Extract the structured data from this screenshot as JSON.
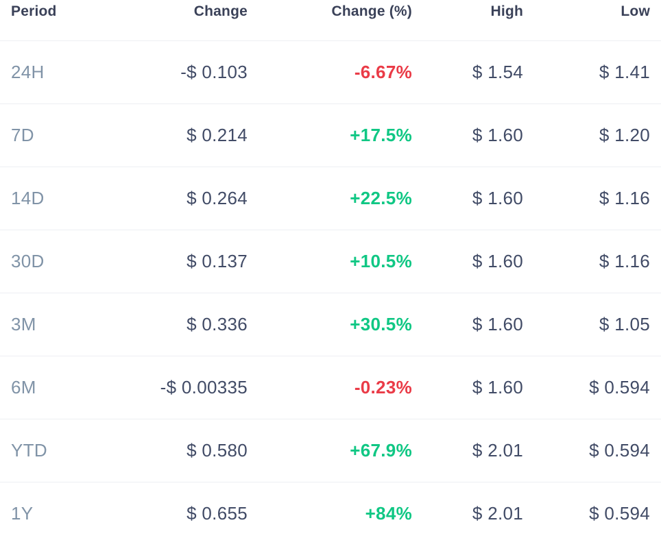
{
  "colors": {
    "header_text": "#3a4158",
    "value_text": "#414b66",
    "period_text": "#8093a7",
    "positive": "#10c784",
    "negative": "#ea3b47",
    "separator": "#edeff3",
    "background": "#ffffff"
  },
  "table": {
    "columns": [
      {
        "id": "period",
        "label": "Period",
        "align": "left"
      },
      {
        "id": "change",
        "label": "Change",
        "align": "right"
      },
      {
        "id": "change_pct",
        "label": "Change (%)",
        "align": "right"
      },
      {
        "id": "high",
        "label": "High",
        "align": "right"
      },
      {
        "id": "low",
        "label": "Low",
        "align": "right"
      }
    ],
    "rows": [
      {
        "period": "24H",
        "change": "-$ 0.103",
        "change_pct": "-6.67%",
        "direction": "down",
        "high": "$ 1.54",
        "low": "$ 1.41"
      },
      {
        "period": "7D",
        "change": "$ 0.214",
        "change_pct": "+17.5%",
        "direction": "up",
        "high": "$ 1.60",
        "low": "$ 1.20"
      },
      {
        "period": "14D",
        "change": "$ 0.264",
        "change_pct": "+22.5%",
        "direction": "up",
        "high": "$ 1.60",
        "low": "$ 1.16"
      },
      {
        "period": "30D",
        "change": "$ 0.137",
        "change_pct": "+10.5%",
        "direction": "up",
        "high": "$ 1.60",
        "low": "$ 1.16"
      },
      {
        "period": "3M",
        "change": "$ 0.336",
        "change_pct": "+30.5%",
        "direction": "up",
        "high": "$ 1.60",
        "low": "$ 1.05"
      },
      {
        "period": "6M",
        "change": "-$ 0.00335",
        "change_pct": "-0.23%",
        "direction": "down",
        "high": "$ 1.60",
        "low": "$ 0.594"
      },
      {
        "period": "YTD",
        "change": "$ 0.580",
        "change_pct": "+67.9%",
        "direction": "up",
        "high": "$ 2.01",
        "low": "$ 0.594"
      },
      {
        "period": "1Y",
        "change": "$ 0.655",
        "change_pct": "+84%",
        "direction": "up",
        "high": "$ 2.01",
        "low": "$ 0.594"
      }
    ]
  },
  "chart_data": {
    "type": "table",
    "title": "Price change statistics by period",
    "columns": [
      "Period",
      "Change",
      "Change (%)",
      "High",
      "Low"
    ],
    "rows": [
      [
        "24H",
        -0.103,
        -6.67,
        1.54,
        1.41
      ],
      [
        "7D",
        0.214,
        17.5,
        1.6,
        1.2
      ],
      [
        "14D",
        0.264,
        22.5,
        1.6,
        1.16
      ],
      [
        "30D",
        0.137,
        10.5,
        1.6,
        1.16
      ],
      [
        "3M",
        0.336,
        30.5,
        1.6,
        1.05
      ],
      [
        "6M",
        -0.00335,
        -0.23,
        1.6,
        0.594
      ],
      [
        "YTD",
        0.58,
        67.9,
        2.01,
        0.594
      ],
      [
        "1Y",
        0.655,
        84.0,
        2.01,
        0.594
      ]
    ],
    "units": {
      "change": "USD",
      "change_pct": "percent",
      "high": "USD",
      "low": "USD"
    },
    "layout": {
      "value_alignment": "right",
      "positive_color": "#10c784",
      "negative_color": "#ea3b47"
    }
  }
}
